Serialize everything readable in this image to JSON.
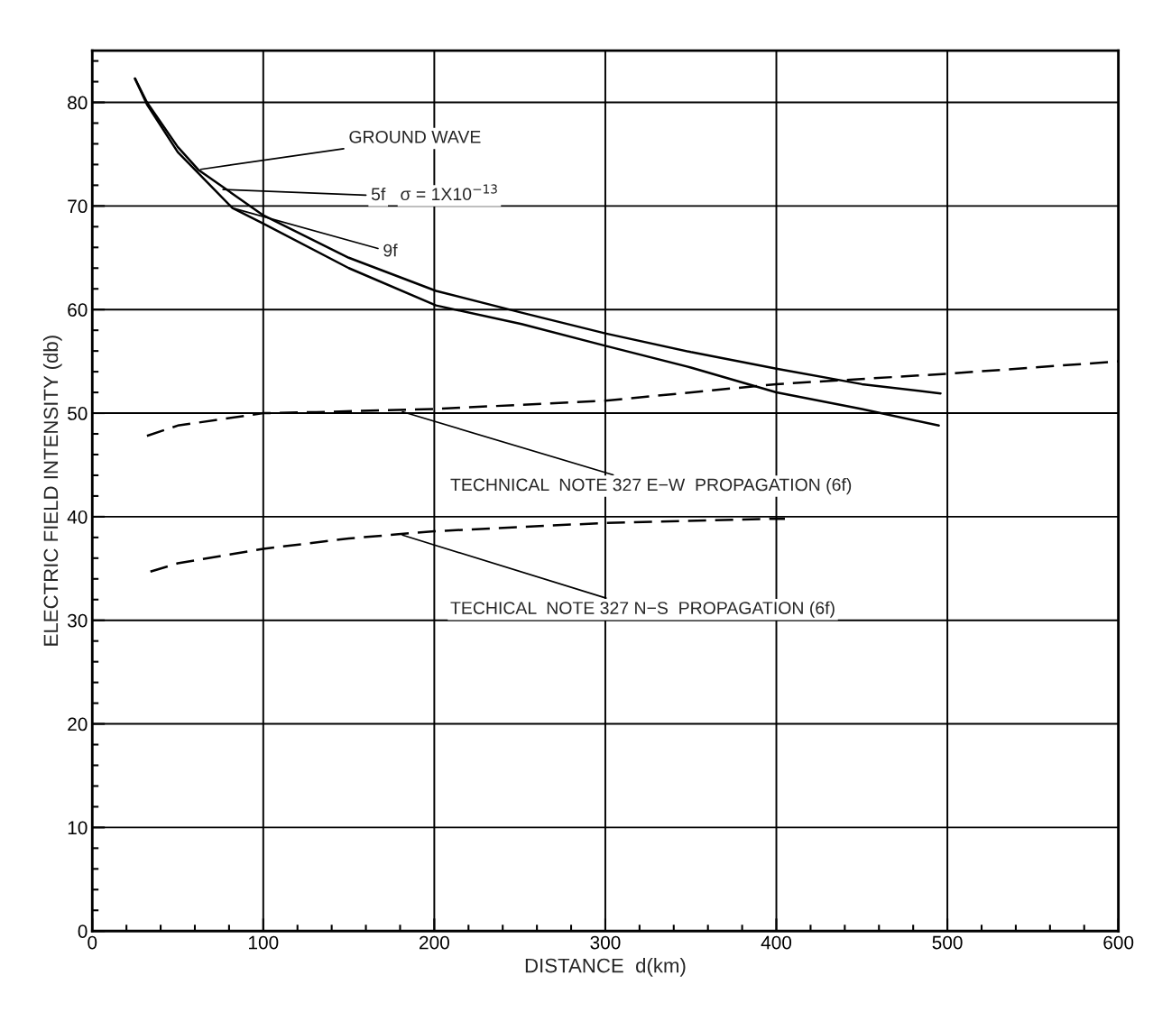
{
  "chart_data": {
    "type": "line",
    "xlabel": "DISTANCE  d(km)",
    "ylabel": "ELECTRIC FIELD INTENSITY (db)",
    "xlim": [
      0,
      600
    ],
    "ylim": [
      0,
      85
    ],
    "xticks": [
      0,
      {
        "value": 20,
        "label": null
      },
      {
        "value": 40,
        "label": null
      },
      {
        "value": 60,
        "label": null
      },
      {
        "value": 80,
        "label": null
      },
      100,
      {
        "value": 120,
        "label": null
      },
      {
        "value": 140,
        "label": null
      },
      {
        "value": 160,
        "label": null
      },
      {
        "value": 180,
        "label": null
      },
      200,
      {
        "value": 220,
        "label": null
      },
      {
        "value": 240,
        "label": null
      },
      {
        "value": 260,
        "label": null
      },
      {
        "value": 280,
        "label": null
      },
      300,
      {
        "value": 320,
        "label": null
      },
      {
        "value": 340,
        "label": null
      },
      {
        "value": 360,
        "label": null
      },
      {
        "value": 380,
        "label": null
      },
      400,
      {
        "value": 420,
        "label": null
      },
      {
        "value": 440,
        "label": null
      },
      {
        "value": 460,
        "label": null
      },
      {
        "value": 480,
        "label": null
      },
      500,
      {
        "value": 520,
        "label": null
      },
      {
        "value": 540,
        "label": null
      },
      {
        "value": 560,
        "label": null
      },
      {
        "value": 580,
        "label": null
      },
      600
    ],
    "yticks": [
      0,
      {
        "value": 2,
        "label": null
      },
      {
        "value": 4,
        "label": null
      },
      {
        "value": 6,
        "label": null
      },
      {
        "value": 8,
        "label": null
      },
      10,
      {
        "value": 12,
        "label": null
      },
      {
        "value": 14,
        "label": null
      },
      {
        "value": 16,
        "label": null
      },
      {
        "value": 18,
        "label": null
      },
      20,
      {
        "value": 22,
        "label": null
      },
      {
        "value": 24,
        "label": null
      },
      {
        "value": 26,
        "label": null
      },
      {
        "value": 28,
        "label": null
      },
      30,
      {
        "value": 32,
        "label": null
      },
      {
        "value": 34,
        "label": null
      },
      {
        "value": 36,
        "label": null
      },
      {
        "value": 38,
        "label": null
      },
      40,
      {
        "value": 42,
        "label": null
      },
      {
        "value": 44,
        "label": null
      },
      {
        "value": 46,
        "label": null
      },
      {
        "value": 48,
        "label": null
      },
      50,
      {
        "value": 52,
        "label": null
      },
      {
        "value": 54,
        "label": null
      },
      {
        "value": 56,
        "label": null
      },
      {
        "value": 58,
        "label": null
      },
      60,
      {
        "value": 62,
        "label": null
      },
      {
        "value": 64,
        "label": null
      },
      {
        "value": 66,
        "label": null
      },
      {
        "value": 68,
        "label": null
      },
      70,
      {
        "value": 72,
        "label": null
      },
      {
        "value": 74,
        "label": null
      },
      {
        "value": 76,
        "label": null
      },
      {
        "value": 78,
        "label": null
      },
      80,
      {
        "value": 82,
        "label": null
      },
      {
        "value": 84,
        "label": null
      }
    ],
    "grid": true,
    "series": [
      {
        "color": "#000000",
        "line_style": "solid",
        "x": [
          25,
          32,
          50,
          62,
          100,
          150,
          201,
          251,
          300,
          350,
          400,
          450,
          496
        ],
        "values": [
          82.3,
          80.0,
          75.7,
          73.5,
          69.1,
          65.0,
          61.8,
          59.7,
          57.7,
          55.9,
          54.3,
          52.8,
          51.9
        ]
      },
      {
        "color": "#000000",
        "line_style": "solid",
        "x": [
          25,
          32,
          50,
          82,
          100,
          150,
          201,
          251,
          300,
          350,
          400,
          450,
          495
        ],
        "values": [
          82.3,
          79.8,
          75.2,
          69.8,
          68.3,
          64.0,
          60.4,
          58.6,
          56.5,
          54.4,
          52.0,
          50.4,
          48.8
        ]
      },
      {
        "color": "#000000",
        "line_style": "dashed",
        "x": [
          32,
          50,
          100,
          131,
          200,
          300,
          400,
          500,
          600
        ],
        "values": [
          47.8,
          48.8,
          50.0,
          50.1,
          50.4,
          51.2,
          52.8,
          53.8,
          55.0
        ]
      },
      {
        "color": "#000000",
        "line_style": "dashed",
        "x": [
          34,
          50,
          100,
          150,
          200,
          300,
          400,
          405
        ],
        "values": [
          34.7,
          35.5,
          36.9,
          37.9,
          38.6,
          39.4,
          39.8,
          39.8
        ]
      }
    ],
    "annotations": [
      {
        "text": "GROUND WAVE",
        "x": 62,
        "y": 73.5
      },
      {
        "text": "5f",
        "x": 75,
        "y": 71.6
      },
      {
        "text": "9f",
        "x": 82,
        "y": 69.8
      },
      "σ = 1X10$^{−13}$",
      {
        "text": "TECHNICAL  NOTE 327 E−W  PROPAGATION (6f)",
        "x": 180,
        "y": 50.2
      },
      {
        "text": "TECHICAL  NOTE 327 N−S  PROPAGATION (6f)",
        "x": 180,
        "y": 38.3
      }
    ]
  }
}
